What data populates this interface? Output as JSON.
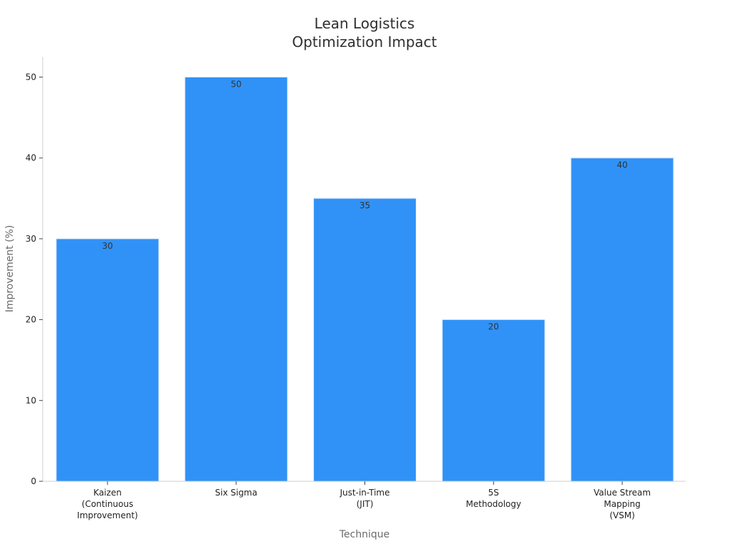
{
  "chart_data": {
    "type": "bar",
    "title_lines": [
      "Lean Logistics",
      "Optimization Impact"
    ],
    "xlabel": "Technique",
    "ylabel": "Improvement (%)",
    "categories": [
      [
        "Kaizen",
        "(Continuous",
        "Improvement)"
      ],
      [
        "Six Sigma"
      ],
      [
        "Just-in-Time",
        "(JIT)"
      ],
      [
        "5S",
        "Methodology"
      ],
      [
        "Value Stream",
        "Mapping",
        "(VSM)"
      ]
    ],
    "values": [
      30,
      50,
      35,
      20,
      40
    ],
    "data_labels": [
      "30",
      "50",
      "35",
      "20",
      "40"
    ],
    "yticks": [
      0,
      10,
      20,
      30,
      40,
      50
    ],
    "ytick_labels": [
      "0",
      "10",
      "20",
      "30",
      "40",
      "50"
    ],
    "ylim": [
      0,
      52.5
    ],
    "grid": false,
    "legend": "none",
    "bar_color": "#3092f7",
    "bar_edge_color": "#d9e6f5"
  }
}
